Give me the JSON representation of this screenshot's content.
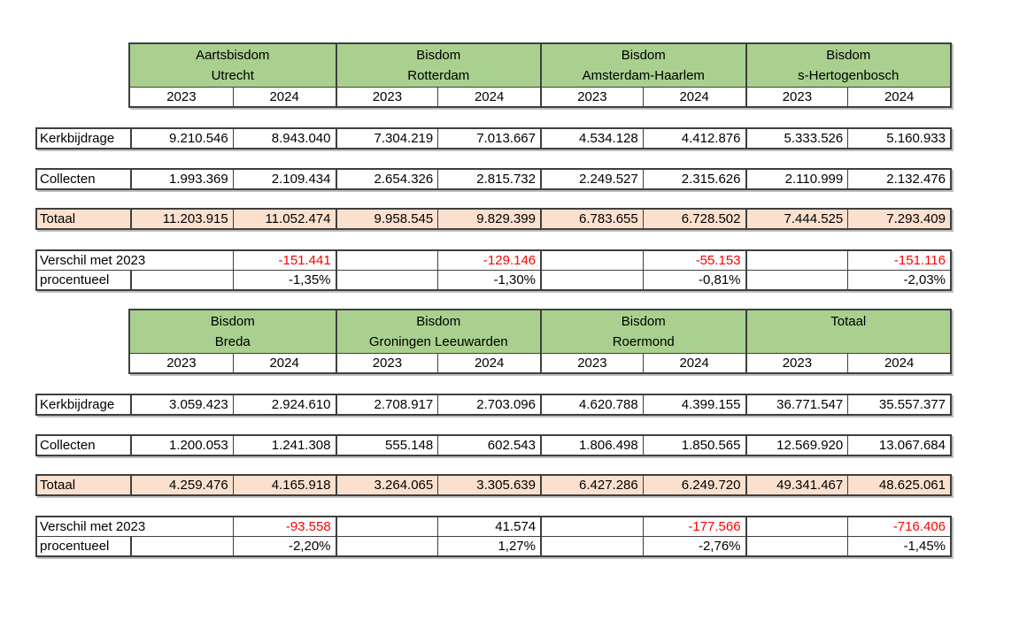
{
  "colors": {
    "header_green": "#A9D08E",
    "totaal_fill": "#FBE0CE",
    "negative_red": "#FF0000"
  },
  "year_headers": [
    "2023",
    "2024"
  ],
  "row_labels": {
    "kerkbijdrage": "Kerkbijdrage",
    "collecten": "Collecten",
    "totaal": "Totaal",
    "verschil": "Verschil met 2023",
    "procentueel": "procentueel"
  },
  "tables": [
    {
      "headers": [
        [
          "Aartsbisdom",
          "Utrecht"
        ],
        [
          "Bisdom",
          "Rotterdam"
        ],
        [
          "Bisdom",
          "Amsterdam-Haarlem"
        ],
        [
          "Bisdom",
          "s-Hertogenbosch"
        ]
      ],
      "rows": {
        "kerkbijdrage": [
          "9.210.546",
          "8.943.040",
          "7.304.219",
          "7.013.667",
          "4.534.128",
          "4.412.876",
          "5.333.526",
          "5.160.933"
        ],
        "collecten": [
          "1.993.369",
          "2.109.434",
          "2.654.326",
          "2.815.732",
          "2.249.527",
          "2.315.626",
          "2.110.999",
          "2.132.476"
        ],
        "totaal": [
          "11.203.915",
          "11.052.474",
          "9.958.545",
          "9.829.399",
          "6.783.655",
          "6.728.502",
          "7.444.525",
          "7.293.409"
        ],
        "verschil": [
          "-151.441",
          "-129.146",
          "-55.153",
          "-151.116"
        ],
        "procentueel": [
          "-1,35%",
          "-1,30%",
          "-0,81%",
          "-2,03%"
        ]
      }
    },
    {
      "headers": [
        [
          "Bisdom",
          "Breda"
        ],
        [
          "Bisdom",
          "Groningen Leeuwarden"
        ],
        [
          "Bisdom",
          "Roermond"
        ],
        [
          "Totaal",
          ""
        ]
      ],
      "rows": {
        "kerkbijdrage": [
          "3.059.423",
          "2.924.610",
          "2.708.917",
          "2.703.096",
          "4.620.788",
          "4.399.155",
          "36.771.547",
          "35.557.377"
        ],
        "collecten": [
          "1.200.053",
          "1.241.308",
          "555.148",
          "602.543",
          "1.806.498",
          "1.850.565",
          "12.569.920",
          "13.067.684"
        ],
        "totaal": [
          "4.259.476",
          "4.165.918",
          "3.264.065",
          "3.305.639",
          "6.427.286",
          "6.249.720",
          "49.341.467",
          "48.625.061"
        ],
        "verschil": [
          "-93.558",
          "41.574",
          "-177.566",
          "-716.406"
        ],
        "procentueel": [
          "-2,20%",
          "1,27%",
          "-2,76%",
          "-1,45%"
        ]
      }
    }
  ]
}
